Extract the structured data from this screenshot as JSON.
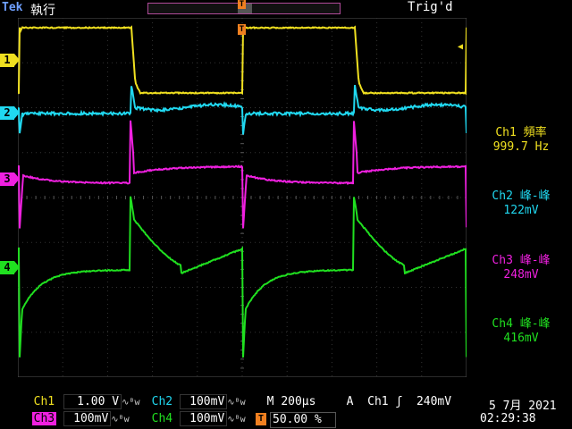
{
  "top": {
    "brand": "Tek",
    "status": "執行",
    "trigger_state": "Trig'd",
    "trigger_pos_marker": "T"
  },
  "channels": [
    {
      "id": "1",
      "color": "#f0e020"
    },
    {
      "id": "2",
      "color": "#20d8f0"
    },
    {
      "id": "3",
      "color": "#f020e0"
    },
    {
      "id": "4",
      "color": "#20e020"
    }
  ],
  "measurements": [
    {
      "title": "Ch1 頻率",
      "value": "999.7 Hz",
      "color": "#f0e020"
    },
    {
      "title": "Ch2 峰-峰",
      "value": "122mV",
      "color": "#20d8f0"
    },
    {
      "title": "Ch3 峰-峰",
      "value": "248mV",
      "color": "#f020e0"
    },
    {
      "title": "Ch4 峰-峰",
      "value": "416mV",
      "color": "#20e020"
    }
  ],
  "bottom": {
    "ch1_label": "Ch1",
    "ch1_scale": "1.00 V",
    "ch2_label": "Ch2",
    "ch2_scale": "100mV",
    "ch3_label": "Ch3",
    "ch3_scale": "100mV",
    "ch4_label": "Ch4",
    "ch4_scale": "100mV",
    "bw_symbol": "∿ᴮw",
    "timebase_label": "M",
    "timebase": "200µs",
    "trigger_mode": "A",
    "trigger_source": "Ch1",
    "trigger_slope": "ʃ",
    "trigger_level": "240mV",
    "trigger_pct": "50.00 %",
    "date": "5 7月  2021",
    "time": "02:29:38"
  }
}
